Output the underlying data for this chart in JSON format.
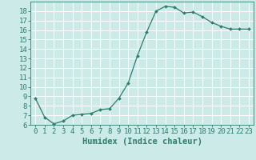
{
  "x": [
    0,
    1,
    2,
    3,
    4,
    5,
    6,
    7,
    8,
    9,
    10,
    11,
    12,
    13,
    14,
    15,
    16,
    17,
    18,
    19,
    20,
    21,
    22,
    23
  ],
  "y": [
    8.8,
    6.8,
    6.1,
    6.4,
    7.0,
    7.1,
    7.2,
    7.6,
    7.7,
    8.8,
    10.4,
    13.3,
    15.8,
    18.0,
    18.5,
    18.4,
    17.8,
    17.9,
    17.4,
    16.8,
    16.4,
    16.1,
    16.1,
    16.1
  ],
  "line_color": "#2d7d6e",
  "marker": "D",
  "marker_size": 2.0,
  "bg_color": "#cceae7",
  "grid_color": "#ffffff",
  "xlabel": "Humidex (Indice chaleur)",
  "ylim": [
    6,
    19
  ],
  "xlim": [
    -0.5,
    23.5
  ],
  "yticks": [
    6,
    7,
    8,
    9,
    10,
    11,
    12,
    13,
    14,
    15,
    16,
    17,
    18
  ],
  "xticks": [
    0,
    1,
    2,
    3,
    4,
    5,
    6,
    7,
    8,
    9,
    10,
    11,
    12,
    13,
    14,
    15,
    16,
    17,
    18,
    19,
    20,
    21,
    22,
    23
  ],
  "tick_color": "#2d7d6e",
  "xlabel_fontsize": 7.5,
  "tick_fontsize": 6.5,
  "linewidth": 0.9
}
